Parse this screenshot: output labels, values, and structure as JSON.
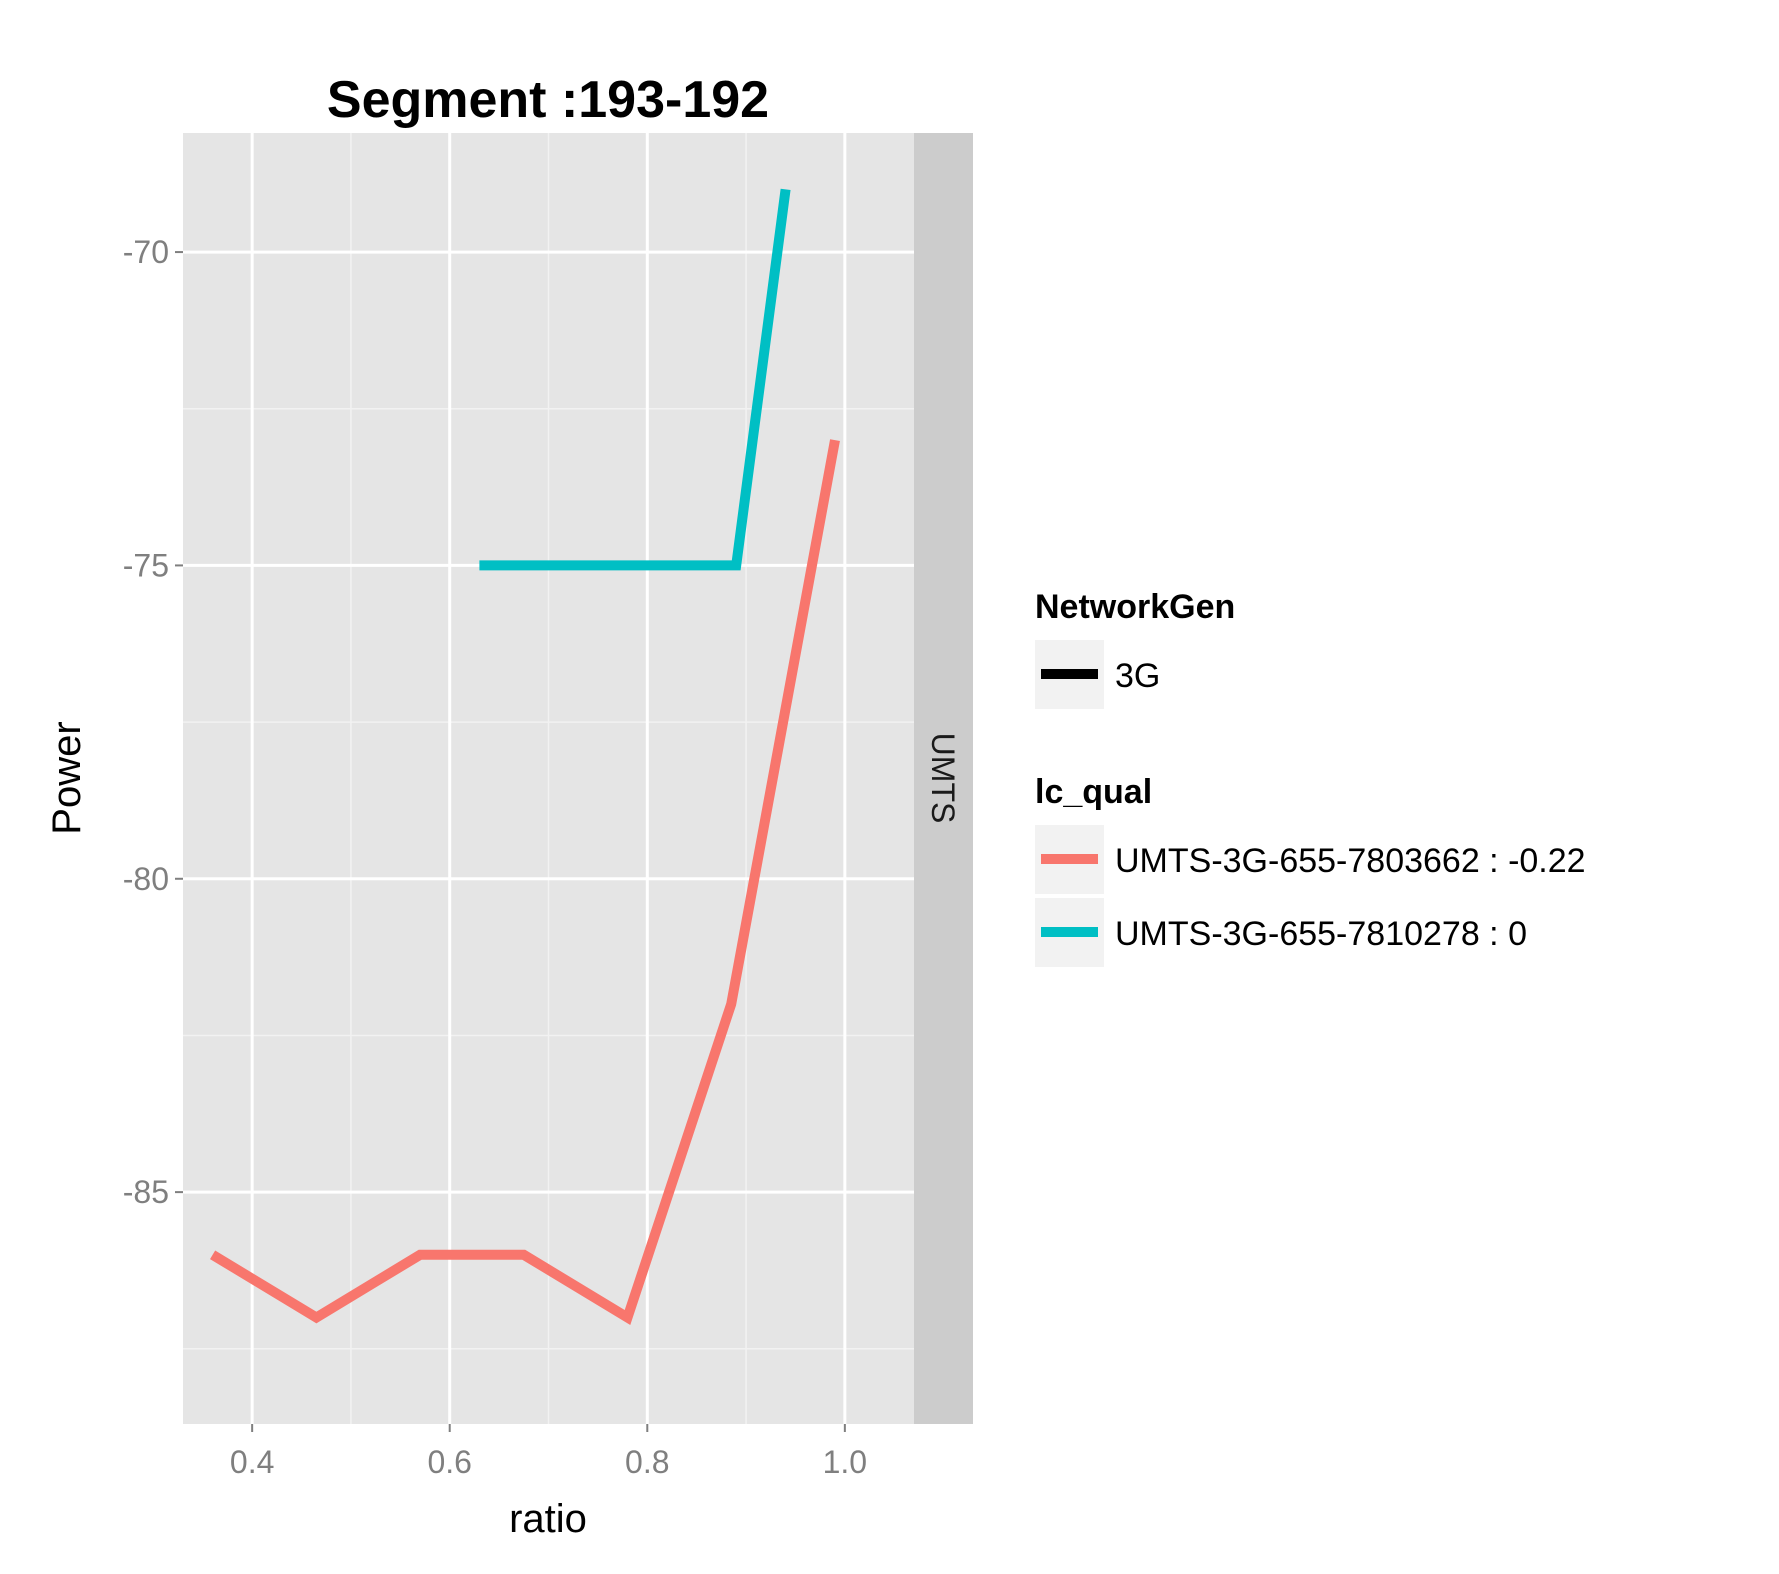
{
  "chart_data": {
    "type": "line",
    "title": "Segment :193-192",
    "xlabel": "ratio",
    "ylabel": "Power",
    "xlim": [
      0.33,
      1.07
    ],
    "ylim": [
      -88.7,
      -68.1
    ],
    "xticks": [
      0.4,
      0.6,
      0.8,
      1.0
    ],
    "xtick_labels": [
      "0.4",
      "0.6",
      "0.8",
      "1.0"
    ],
    "yticks": [
      -70,
      -75,
      -80,
      -85
    ],
    "ytick_labels": [
      "-70",
      "-75",
      "-80",
      "-85"
    ],
    "x_minor_ticks": [
      0.5,
      0.7,
      0.9
    ],
    "y_minor_ticks": [
      -72.5,
      -77.5,
      -82.5,
      -87.5
    ],
    "grid": true,
    "facet_strip": "UMTS",
    "legend_position": "right",
    "legend": {
      "networkgen": {
        "title": "NetworkGen",
        "entries": [
          {
            "label": "3G",
            "color": "#000000"
          }
        ]
      },
      "lc_qual": {
        "title": "lc_qual",
        "entries": [
          {
            "label": "UMTS-3G-655-7803662 : -0.22",
            "color": "#F8766D"
          },
          {
            "label": "UMTS-3G-655-7810278 : 0",
            "color": "#00BFC4"
          }
        ]
      }
    },
    "series": [
      {
        "name": "UMTS-3G-655-7803662 : -0.22",
        "color": "#F8766D",
        "points": [
          {
            "x": 0.36,
            "y": -86
          },
          {
            "x": 0.465,
            "y": -87
          },
          {
            "x": 0.57,
            "y": -86
          },
          {
            "x": 0.675,
            "y": -86
          },
          {
            "x": 0.78,
            "y": -87
          },
          {
            "x": 0.885,
            "y": -82
          },
          {
            "x": 0.99,
            "y": -73
          }
        ]
      },
      {
        "name": "UMTS-3G-655-7810278 : 0",
        "color": "#00BFC4",
        "points": [
          {
            "x": 0.63,
            "y": -75
          },
          {
            "x": 0.89,
            "y": -75
          },
          {
            "x": 0.94,
            "y": -69
          }
        ]
      }
    ]
  }
}
